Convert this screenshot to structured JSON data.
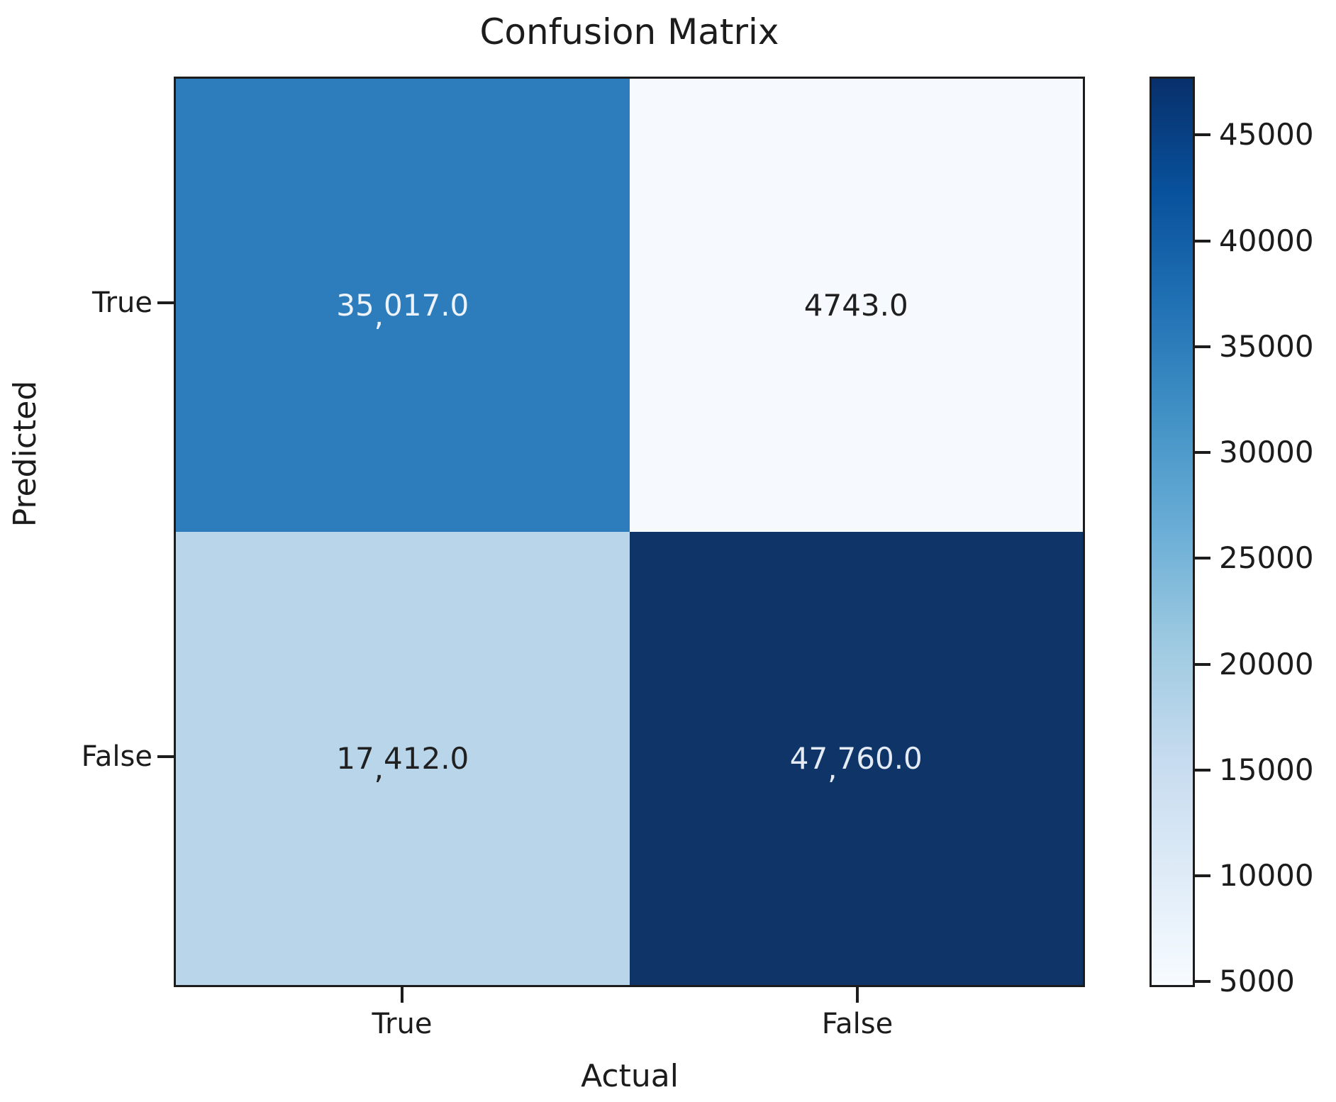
{
  "chart_data": {
    "type": "heatmap",
    "title": "Confusion Matrix",
    "xlabel": "Actual",
    "ylabel": "Predicted",
    "x_categories": [
      "True",
      "False"
    ],
    "y_categories": [
      "True",
      "False"
    ],
    "matrix": [
      [
        35017.0,
        4743.0
      ],
      [
        17412.0,
        47760.0
      ]
    ],
    "vmin": 4743.0,
    "vmax": 47760.0,
    "colormap": "Blues",
    "cells": [
      {
        "row": "True",
        "col": "True",
        "value": 35017.0,
        "label_pre": "35",
        "label_comma": ",",
        "label_post": "017.0",
        "bg": "#2d7cbc",
        "fg": "#edf3fa"
      },
      {
        "row": "True",
        "col": "False",
        "value": 4743.0,
        "label_pre": "4743.0",
        "label_comma": "",
        "label_post": "",
        "bg": "#f6fafe",
        "fg": "#202020"
      },
      {
        "row": "False",
        "col": "True",
        "value": 17412.0,
        "label_pre": "17",
        "label_comma": ",",
        "label_post": "412.0",
        "bg": "#b8d5ea",
        "fg": "#202020"
      },
      {
        "row": "False",
        "col": "False",
        "value": 47760.0,
        "label_pre": "47",
        "label_comma": ",",
        "label_post": "760.0",
        "bg": "#0e3468",
        "fg": "#e4ebf5"
      }
    ],
    "colorbar": {
      "ticks": [
        5000,
        10000,
        15000,
        20000,
        25000,
        30000,
        35000,
        40000,
        45000
      ],
      "tick_labels": [
        "5000",
        "10000",
        "15000",
        "20000",
        "25000",
        "30000",
        "35000",
        "40000",
        "45000"
      ],
      "gradient_stops": [
        "#f7fbff",
        "#deebf7",
        "#c6dbef",
        "#9ecae1",
        "#6baed6",
        "#4292c6",
        "#2171b5",
        "#08519c",
        "#08306b"
      ]
    },
    "axis_color": "#1c1c1c"
  }
}
